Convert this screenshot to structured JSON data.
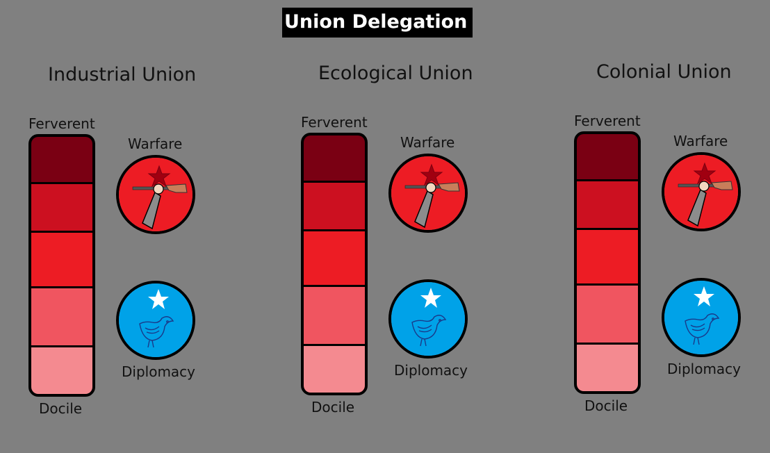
{
  "title": "Union Delegation",
  "colors": {
    "background": "#808080",
    "warfare_badge": "#ED1C24",
    "diplomacy_badge": "#00A2E8",
    "segments": [
      "#7A0013",
      "#CC1020",
      "#ED1C24",
      "#F05560",
      "#F48A90"
    ]
  },
  "labels": {
    "top": "Ferverent",
    "bottom": "Docile",
    "warfare": "Warfare",
    "diplomacy": "Diplomacy"
  },
  "icons": {
    "warfare": "fist-rifle-star-icon",
    "diplomacy": "bird-star-icon"
  },
  "unions": [
    {
      "name": "Industrial Union"
    },
    {
      "name": "Ecological Union"
    },
    {
      "name": "Colonial Union"
    }
  ]
}
